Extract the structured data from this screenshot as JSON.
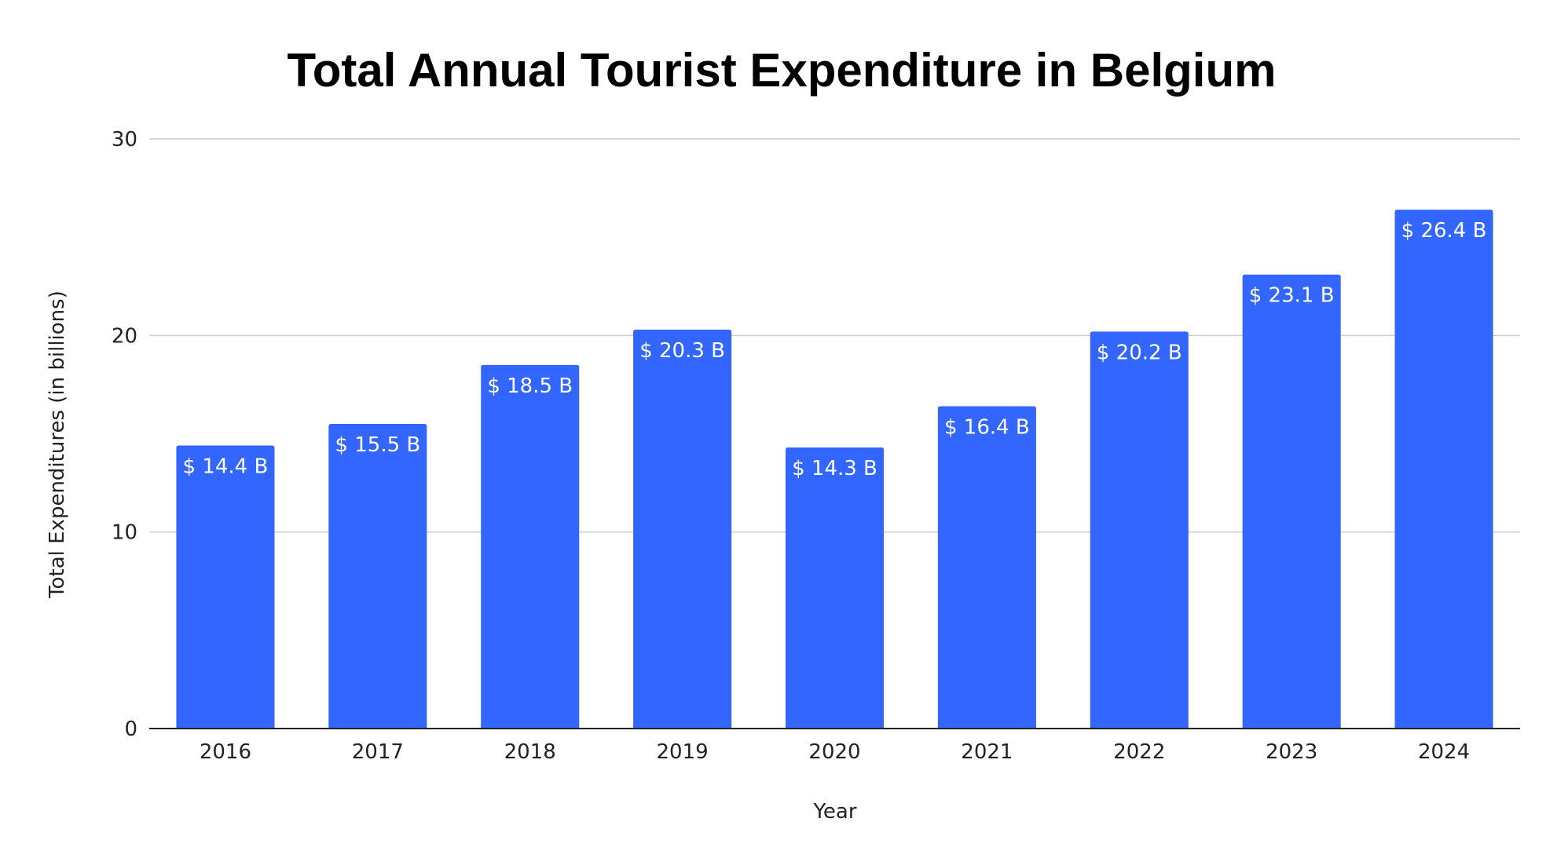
{
  "chart_data": {
    "type": "bar",
    "title": "Total Annual Tourist Expenditure in Belgium",
    "xlabel": "Year",
    "ylabel": "Total Expenditures (in billions)",
    "categories": [
      "2016",
      "2017",
      "2018",
      "2019",
      "2020",
      "2021",
      "2022",
      "2023",
      "2024"
    ],
    "values": [
      14.4,
      15.5,
      18.5,
      20.3,
      14.3,
      16.4,
      20.2,
      23.1,
      26.4
    ],
    "data_labels": [
      "$ 14.4 B",
      "$ 15.5 B",
      "$ 18.5 B",
      "$ 20.3 B",
      "$ 14.3 B",
      "$ 16.4 B",
      "$ 20.2 B",
      "$ 23.1 B",
      "$ 26.4 B"
    ],
    "ylim": [
      0,
      30
    ],
    "yticks": [
      0,
      10,
      20,
      30
    ],
    "grid": true,
    "legend": "none",
    "colors": {
      "bar": "#3366ff",
      "grid": "#cccccc",
      "axis": "#222222",
      "data_label": "#ffffff"
    }
  }
}
